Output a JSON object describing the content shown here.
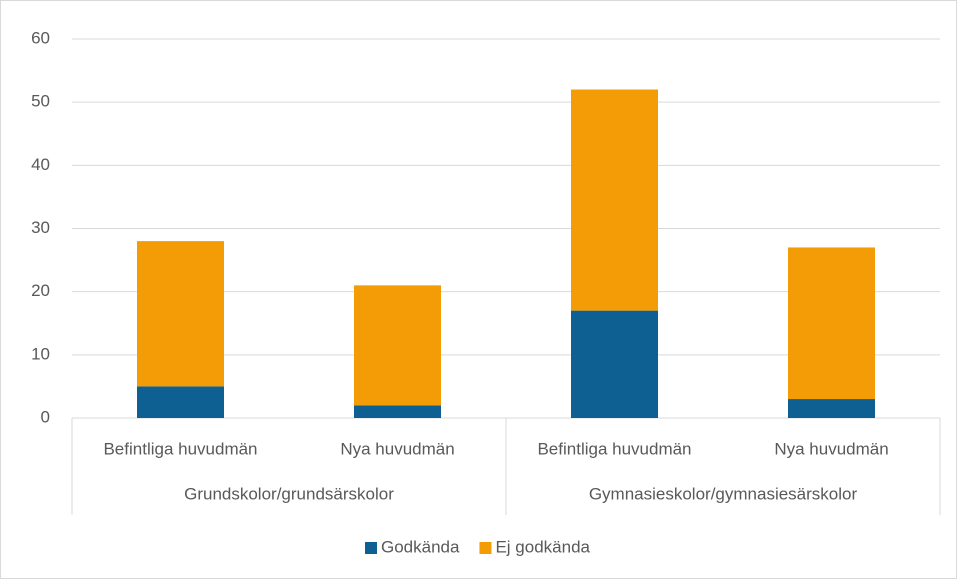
{
  "chart_data": {
    "type": "stacked_bar",
    "categories": [
      "Befintliga huvudmän",
      "Nya huvudmän",
      "Befintliga huvudmän",
      "Nya huvudmän"
    ],
    "groups": [
      "Grundskolor/grundsärskolor",
      "Gymnasieskolor/gymnasiesärskolor"
    ],
    "series": [
      {
        "name": "Godkända",
        "color": "#0e5f92",
        "values": [
          5,
          2,
          17,
          3
        ]
      },
      {
        "name": "Ej godkända",
        "color": "#f39c05",
        "values": [
          23,
          19,
          35,
          24
        ]
      }
    ],
    "ylim": [
      0,
      60
    ],
    "yticks": [
      0,
      10,
      20,
      30,
      40,
      50,
      60
    ],
    "grid": true,
    "legend": "bottom"
  }
}
